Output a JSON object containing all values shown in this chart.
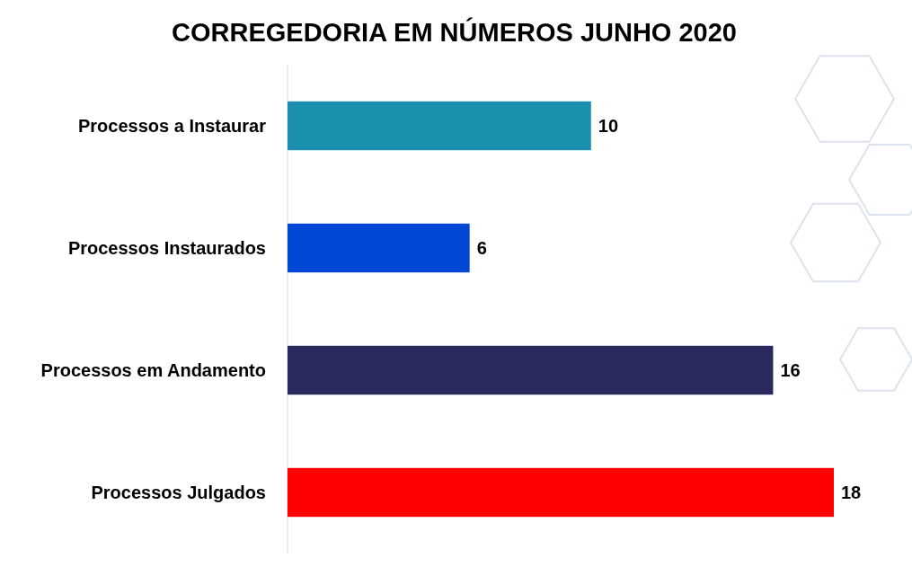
{
  "chart_data": {
    "type": "bar",
    "orientation": "horizontal",
    "title": "CORREGEDORIA EM NÚMEROS JUNHO 2020",
    "categories": [
      "Processos a Instaurar",
      "Processos Instaurados",
      "Processos em Andamento",
      "Processos Julgados"
    ],
    "values": [
      10,
      6,
      16,
      18
    ],
    "colors": [
      "#1a8fae",
      "#0047d6",
      "#2a2a5e",
      "#ff0000"
    ],
    "data_labels": true
  }
}
